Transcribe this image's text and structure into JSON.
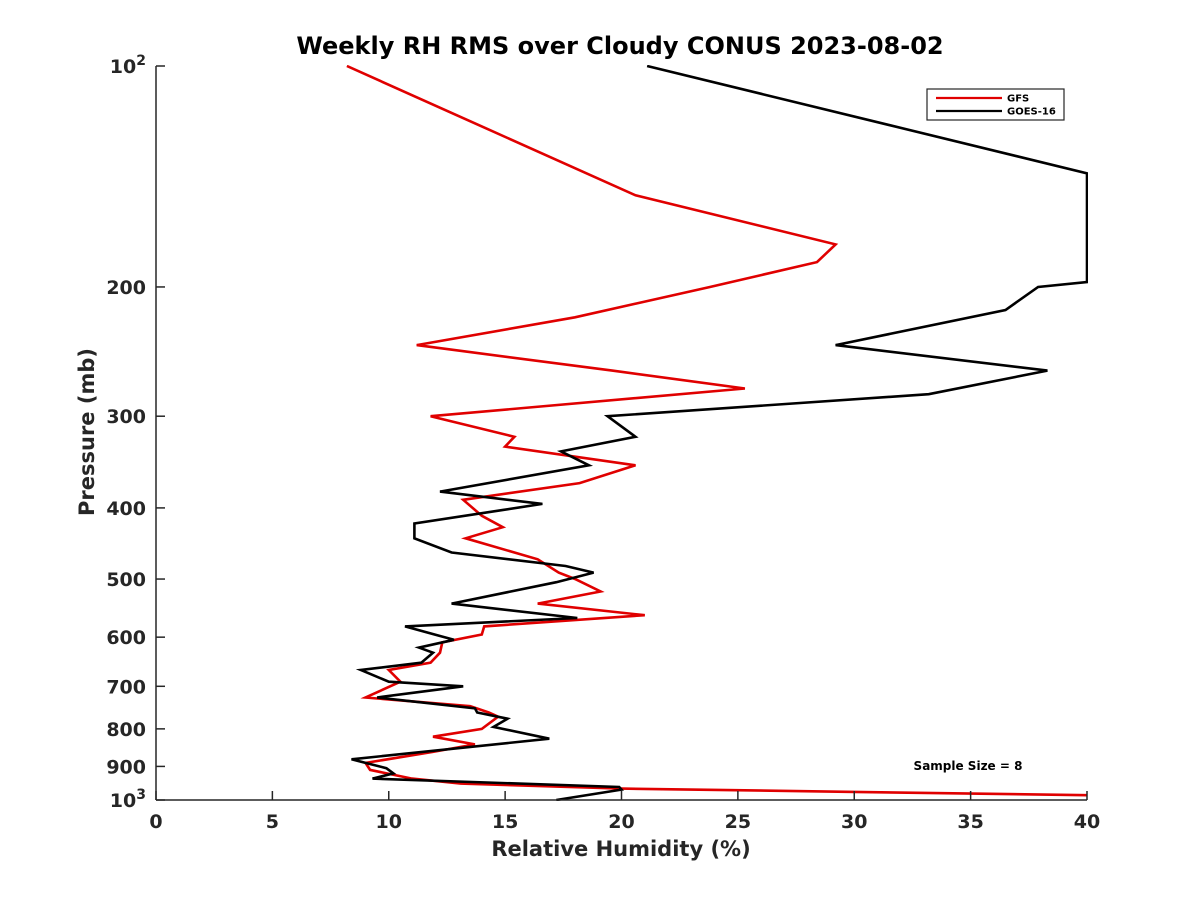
{
  "chart_data": {
    "type": "line",
    "title": "Weekly RH RMS over Cloudy CONUS 2023-08-02",
    "xlabel": "Relative Humidity (%)",
    "ylabel": "Pressure (mb)",
    "xlim": [
      0,
      40
    ],
    "ylim": [
      100,
      1000
    ],
    "yscale": "log",
    "yreversed": true,
    "x_ticks": [
      "0",
      "5",
      "10",
      "15",
      "20",
      "25",
      "30",
      "35",
      "40"
    ],
    "y_ticks": [
      {
        "value": 100,
        "label": "10",
        "exp": "2"
      },
      {
        "value": 200,
        "label": "200",
        "exp": ""
      },
      {
        "value": 300,
        "label": "300",
        "exp": ""
      },
      {
        "value": 400,
        "label": "400",
        "exp": ""
      },
      {
        "value": 500,
        "label": "500",
        "exp": ""
      },
      {
        "value": 600,
        "label": "600",
        "exp": ""
      },
      {
        "value": 700,
        "label": "700",
        "exp": ""
      },
      {
        "value": 800,
        "label": "800",
        "exp": ""
      },
      {
        "value": 900,
        "label": "900",
        "exp": ""
      },
      {
        "value": 1000,
        "label": "10",
        "exp": "3"
      }
    ],
    "grid": false,
    "legend_position": "top-right",
    "annotation": "Sample Size = 8",
    "series": [
      {
        "name": "GFS",
        "color": "#e00000",
        "points": [
          [
            8.2,
            100
          ],
          [
            20.6,
            150
          ],
          [
            29.2,
            175
          ],
          [
            28.4,
            185
          ],
          [
            23.8,
            200
          ],
          [
            18.0,
            220
          ],
          [
            11.2,
            240
          ],
          [
            19.6,
            260
          ],
          [
            25.3,
            275
          ],
          [
            11.8,
            300
          ],
          [
            15.4,
            320
          ],
          [
            15.0,
            330
          ],
          [
            20.6,
            350
          ],
          [
            18.2,
            370
          ],
          [
            13.2,
            390
          ],
          [
            14.0,
            410
          ],
          [
            14.9,
            425
          ],
          [
            13.3,
            440
          ],
          [
            16.4,
            470
          ],
          [
            17.3,
            490
          ],
          [
            18.0,
            500
          ],
          [
            19.1,
            520
          ],
          [
            16.4,
            540
          ],
          [
            21.0,
            560
          ],
          [
            14.1,
            580
          ],
          [
            14.0,
            595
          ],
          [
            12.3,
            610
          ],
          [
            12.2,
            630
          ],
          [
            11.8,
            650
          ],
          [
            10.0,
            665
          ],
          [
            10.5,
            690
          ],
          [
            9.0,
            725
          ],
          [
            13.5,
            745
          ],
          [
            14.3,
            760
          ],
          [
            14.7,
            770
          ],
          [
            14.0,
            800
          ],
          [
            11.9,
            820
          ],
          [
            13.7,
            840
          ],
          [
            11.9,
            860
          ],
          [
            9.0,
            890
          ],
          [
            9.2,
            910
          ],
          [
            11.0,
            935
          ],
          [
            13.1,
            950
          ],
          [
            20.0,
            965
          ],
          [
            30.0,
            975
          ],
          [
            40.0,
            985
          ]
        ]
      },
      {
        "name": "GOES-16",
        "color": "#000000",
        "points": [
          [
            21.1,
            100
          ],
          [
            40.0,
            140
          ],
          [
            40.0,
            197
          ],
          [
            37.9,
            200
          ],
          [
            36.5,
            215
          ],
          [
            29.2,
            240
          ],
          [
            38.3,
            260
          ],
          [
            33.2,
            280
          ],
          [
            19.4,
            300
          ],
          [
            20.6,
            320
          ],
          [
            17.4,
            335
          ],
          [
            18.6,
            350
          ],
          [
            12.2,
            380
          ],
          [
            16.6,
            395
          ],
          [
            11.1,
            420
          ],
          [
            11.1,
            440
          ],
          [
            12.7,
            460
          ],
          [
            17.6,
            480
          ],
          [
            18.8,
            490
          ],
          [
            17.2,
            505
          ],
          [
            12.7,
            540
          ],
          [
            18.1,
            565
          ],
          [
            10.7,
            580
          ],
          [
            12.8,
            605
          ],
          [
            11.3,
            620
          ],
          [
            11.9,
            630
          ],
          [
            11.4,
            650
          ],
          [
            8.8,
            665
          ],
          [
            10.0,
            690
          ],
          [
            13.2,
            700
          ],
          [
            9.5,
            725
          ],
          [
            13.7,
            750
          ],
          [
            13.8,
            760
          ],
          [
            15.1,
            775
          ],
          [
            14.5,
            795
          ],
          [
            16.9,
            825
          ],
          [
            8.4,
            880
          ],
          [
            9.9,
            905
          ],
          [
            10.2,
            920
          ],
          [
            9.3,
            935
          ],
          [
            19.9,
            960
          ],
          [
            20.0,
            968
          ],
          [
            17.2,
            1000
          ]
        ]
      }
    ]
  }
}
